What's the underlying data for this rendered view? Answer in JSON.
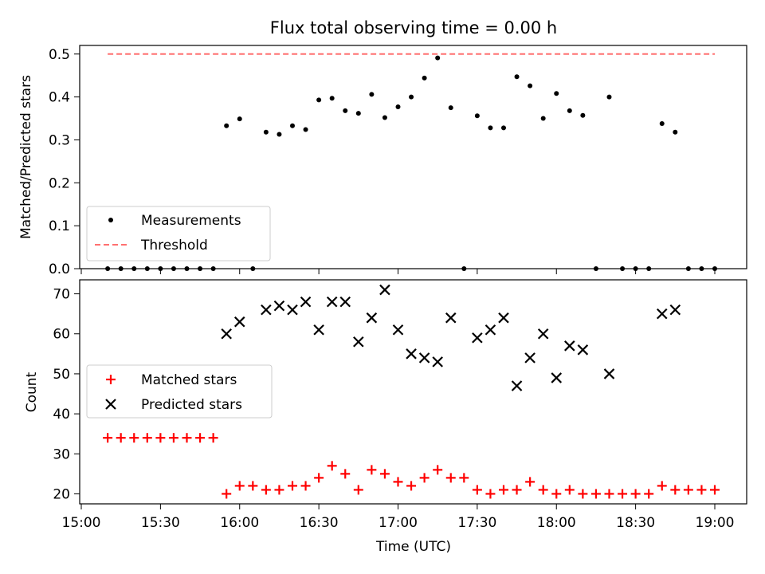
{
  "chart_data": [
    {
      "type": "scatter",
      "title": "Flux total observing time = 0.00 h",
      "xlabel": "",
      "ylabel": "Matched/Predicted stars",
      "ylim": [
        0,
        0.52
      ],
      "yticks": [
        "0.0",
        "0.1",
        "0.2",
        "0.3",
        "0.4",
        "0.5"
      ],
      "ytick_values": [
        0,
        0.1,
        0.2,
        0.3,
        0.4,
        0.5
      ],
      "xticks_values": [
        "15:00",
        "15:30",
        "16:00",
        "16:30",
        "17:00",
        "17:30",
        "18:00",
        "18:30",
        "19:00"
      ],
      "legend_position": "lower-left",
      "series": [
        {
          "name": "Measurements",
          "marker": "dot",
          "color": "#000000",
          "x": [
            "15:10",
            "15:15",
            "15:20",
            "15:25",
            "15:30",
            "15:35",
            "15:40",
            "15:45",
            "15:50",
            "15:55",
            "16:00",
            "16:05",
            "16:10",
            "16:15",
            "16:20",
            "16:25",
            "16:30",
            "16:35",
            "16:40",
            "16:45",
            "16:50",
            "16:55",
            "17:00",
            "17:05",
            "17:10",
            "17:15",
            "17:20",
            "17:25",
            "17:30",
            "17:35",
            "17:40",
            "17:45",
            "17:50",
            "17:55",
            "18:00",
            "18:05",
            "18:10",
            "18:15",
            "18:20",
            "18:25",
            "18:30",
            "18:35",
            "18:40",
            "18:45",
            "18:50",
            "18:55",
            "19:00"
          ],
          "values": [
            0,
            0,
            0,
            0,
            0,
            0,
            0,
            0,
            0,
            0.333,
            0.349,
            0,
            0.318,
            0.313,
            0.333,
            0.324,
            0.393,
            0.397,
            0.368,
            0.362,
            0.406,
            0.352,
            0.377,
            0.4,
            0.444,
            0.491,
            0.375,
            0,
            0.356,
            0.328,
            0.328,
            0.447,
            0.426,
            0.35,
            0.408,
            0.368,
            0.357,
            0,
            0.4,
            0,
            0,
            0,
            0.338,
            0.318,
            0,
            0,
            0
          ]
        },
        {
          "name": "Threshold",
          "style": "dashed",
          "color": "#ff7070",
          "x": [
            "15:10",
            "19:00"
          ],
          "values": [
            0.5,
            0.5
          ]
        }
      ]
    },
    {
      "type": "scatter",
      "title": "",
      "xlabel": "Time (UTC)",
      "ylabel": "Count",
      "ylim": [
        17.5,
        73.5
      ],
      "yticks": [
        "20",
        "30",
        "40",
        "50",
        "60",
        "70"
      ],
      "ytick_values": [
        20,
        30,
        40,
        50,
        60,
        70
      ],
      "xticks": [
        "15:00",
        "15:30",
        "16:00",
        "16:30",
        "17:00",
        "17:30",
        "18:00",
        "18:30",
        "19:00"
      ],
      "legend_position": "center-left",
      "series": [
        {
          "name": "Matched stars",
          "marker": "plus",
          "color": "#ff0000",
          "x": [
            "15:10",
            "15:15",
            "15:20",
            "15:25",
            "15:30",
            "15:35",
            "15:40",
            "15:45",
            "15:50",
            "15:55",
            "16:00",
            "16:05",
            "16:10",
            "16:15",
            "16:20",
            "16:25",
            "16:30",
            "16:35",
            "16:40",
            "16:45",
            "16:50",
            "16:55",
            "17:00",
            "17:05",
            "17:10",
            "17:15",
            "17:20",
            "17:25",
            "17:30",
            "17:35",
            "17:40",
            "17:45",
            "17:50",
            "17:55",
            "18:00",
            "18:05",
            "18:10",
            "18:15",
            "18:20",
            "18:25",
            "18:30",
            "18:35",
            "18:40",
            "18:45",
            "18:50",
            "18:55",
            "19:00"
          ],
          "values": [
            34,
            34,
            34,
            34,
            34,
            34,
            34,
            34,
            34,
            20,
            22,
            22,
            21,
            21,
            22,
            22,
            24,
            27,
            25,
            21,
            26,
            25,
            23,
            22,
            24,
            26,
            24,
            24,
            21,
            20,
            21,
            21,
            23,
            21,
            20,
            21,
            20,
            20,
            20,
            20,
            20,
            20,
            22,
            21,
            21,
            21,
            21
          ]
        },
        {
          "name": "Predicted stars",
          "marker": "x",
          "color": "#000000",
          "x": [
            "15:55",
            "16:00",
            "16:10",
            "16:15",
            "16:20",
            "16:25",
            "16:30",
            "16:35",
            "16:40",
            "16:45",
            "16:50",
            "16:55",
            "17:00",
            "17:05",
            "17:10",
            "17:15",
            "17:20",
            "17:30",
            "17:35",
            "17:40",
            "17:45",
            "17:50",
            "17:55",
            "18:00",
            "18:05",
            "18:10",
            "18:20",
            "18:40",
            "18:45"
          ],
          "values": [
            60,
            63,
            66,
            67,
            66,
            68,
            61,
            68,
            68,
            58,
            64,
            71,
            61,
            55,
            54,
            53,
            64,
            59,
            61,
            64,
            47,
            54,
            60,
            49,
            57,
            56,
            50,
            65,
            66
          ]
        }
      ]
    }
  ]
}
